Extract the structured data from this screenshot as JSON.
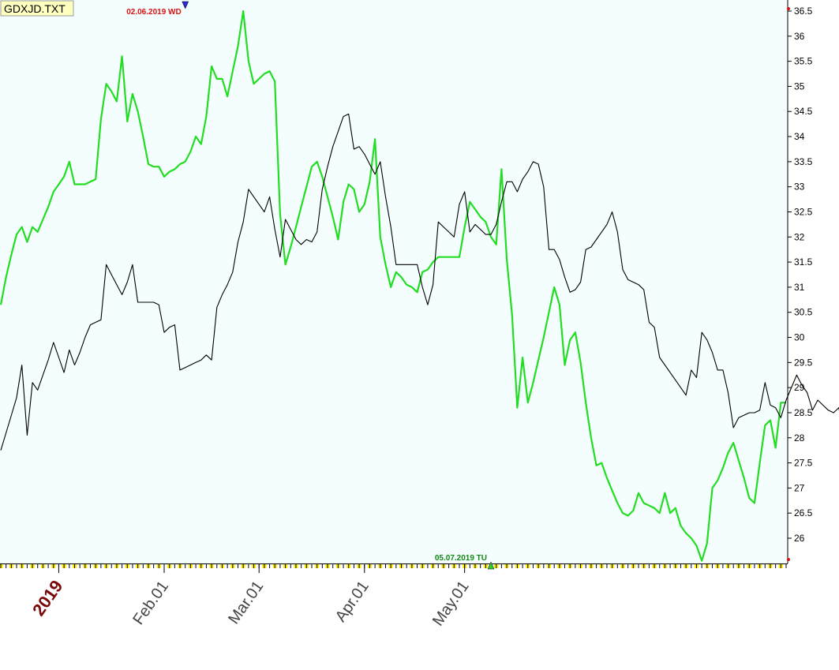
{
  "ticker": "GDXJD.TXT",
  "colors": {
    "plot_bg": "#f5fefe",
    "series_green": "#22dd22",
    "series_black": "#000000",
    "high_marker": "#dd1111",
    "low_marker": "#118811",
    "year_label": "#7a0a0a",
    "tick_yellow": "#ffee00"
  },
  "chart_data": {
    "type": "line",
    "ylim": [
      25.5,
      36.6
    ],
    "y_ticks": [
      "36.5",
      "36",
      "35.5",
      "35",
      "34.5",
      "34",
      "33.5",
      "33",
      "32.5",
      "32",
      "31.5",
      "31",
      "30.5",
      "30",
      "29.5",
      "29",
      "28.5",
      "28",
      "27.5",
      "27",
      "26.5",
      "26"
    ],
    "x_labels": [
      "2019",
      "Feb.01",
      "Mar.01",
      "Apr.01",
      "May.01"
    ],
    "x_label_index": [
      11,
      31,
      49,
      69,
      88
    ],
    "grid": false,
    "annotations": [
      {
        "text": "02.06.2019 WD",
        "type": "high",
        "index": 35,
        "value": 36.6
      },
      {
        "text": "05.07.2019 TU",
        "type": "low",
        "index": 93,
        "value": 25.55
      }
    ],
    "series": [
      {
        "color": "#22dd22",
        "values": [
          30.65,
          31.2,
          31.65,
          32.05,
          32.2,
          31.9,
          32.2,
          32.1,
          32.35,
          32.6,
          32.9,
          33.05,
          33.2,
          33.5,
          33.05,
          33.05,
          33.05,
          33.1,
          33.15,
          34.35,
          35.05,
          34.9,
          34.7,
          35.6,
          34.3,
          34.85,
          34.5,
          34.0,
          33.45,
          33.4,
          33.4,
          33.2,
          33.3,
          33.35,
          33.45,
          33.5,
          33.7,
          34.0,
          33.85,
          34.4,
          35.4,
          35.15,
          35.15,
          34.8,
          35.3,
          35.8,
          36.5,
          35.5,
          35.05,
          35.15,
          35.25,
          35.3,
          35.1,
          32.45,
          31.45,
          31.8,
          32.2,
          32.6,
          33.0,
          33.4,
          33.5,
          33.2,
          32.8,
          32.4,
          31.95,
          32.7,
          33.05,
          32.95,
          32.5,
          32.65,
          33.1,
          33.95,
          32.0,
          31.45,
          31.0,
          31.3,
          31.2,
          31.05,
          31.0,
          30.9,
          31.3,
          31.35,
          31.5,
          31.6,
          31.6,
          31.6,
          31.6,
          31.6,
          32.2,
          32.7,
          32.55,
          32.4,
          32.3,
          32.0,
          31.85,
          33.35,
          31.55,
          30.45,
          28.6,
          29.6,
          28.7,
          29.1,
          29.55,
          30.0,
          30.5,
          31.0,
          30.65,
          29.45,
          29.95,
          30.1,
          29.5,
          28.7,
          28.0,
          27.45,
          27.5,
          27.2,
          26.95,
          26.7,
          26.5,
          26.45,
          26.55,
          26.9,
          26.7,
          26.65,
          26.6,
          26.5,
          26.9,
          26.5,
          26.6,
          26.25,
          26.1,
          26.0,
          25.85,
          25.55,
          25.9,
          27.0,
          27.15,
          27.4,
          27.7,
          27.9,
          27.55,
          27.2,
          26.8,
          26.7,
          27.5,
          28.25,
          28.35,
          27.8,
          28.7,
          28.7
        ]
      },
      {
        "color": "#000000",
        "values": [
          27.75,
          28.1,
          28.45,
          28.8,
          29.45,
          28.05,
          29.1,
          28.95,
          29.25,
          29.55,
          29.9,
          29.6,
          29.3,
          29.75,
          29.45,
          29.7,
          30.0,
          30.25,
          30.3,
          30.35,
          31.45,
          31.25,
          31.05,
          30.85,
          31.1,
          31.45,
          30.7,
          30.7,
          30.7,
          30.7,
          30.65,
          30.1,
          30.2,
          30.25,
          29.35,
          29.4,
          29.45,
          29.5,
          29.55,
          29.65,
          29.55,
          30.6,
          30.85,
          31.05,
          31.3,
          31.9,
          32.3,
          32.95,
          32.8,
          32.65,
          32.5,
          32.8,
          32.15,
          31.6,
          32.35,
          32.15,
          31.95,
          31.85,
          31.95,
          31.9,
          32.1,
          32.95,
          33.4,
          33.8,
          34.1,
          34.4,
          34.45,
          33.75,
          33.8,
          33.65,
          33.45,
          33.25,
          33.5,
          32.8,
          32.2,
          31.45,
          31.45,
          31.45,
          31.45,
          31.45,
          31.0,
          30.65,
          31.05,
          32.3,
          32.2,
          32.1,
          32.0,
          32.65,
          32.9,
          32.1,
          32.25,
          32.15,
          32.05,
          32.05,
          32.25,
          32.7,
          33.1,
          33.1,
          32.9,
          33.15,
          33.3,
          33.5,
          33.45,
          33.0,
          31.75,
          31.75,
          31.55,
          31.2,
          30.9,
          30.95,
          31.1,
          31.75,
          31.8,
          31.95,
          32.1,
          32.25,
          32.5,
          32.1,
          31.35,
          31.15,
          31.1,
          31.05,
          30.95,
          30.3,
          30.2,
          29.6,
          29.45,
          29.3,
          29.15,
          29.0,
          28.85,
          29.35,
          29.2,
          30.1,
          29.95,
          29.7,
          29.35,
          29.35,
          28.9,
          28.2,
          28.4,
          28.45,
          28.5,
          28.5,
          28.55,
          29.1,
          28.65,
          28.6,
          28.4,
          28.75,
          29.0,
          29.25,
          29.05,
          28.9,
          28.55,
          28.75,
          28.65,
          28.55,
          28.5,
          28.6,
          28.0
        ]
      }
    ]
  }
}
